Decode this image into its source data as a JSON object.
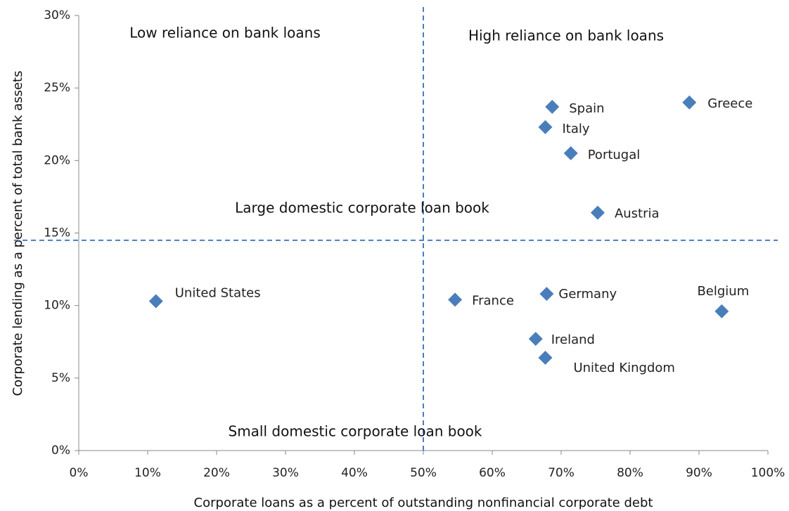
{
  "chart_data": {
    "type": "scatter",
    "x_label": "Corporate loans as a percent of outstanding nonfinancial corporate debt",
    "y_label": "Corporate lending as a percent of total bank assets",
    "annotations": [
      "Low reliance on bank loans",
      "High reliance on bank loans",
      "Large domestic  corporate loan book",
      "Small domestic  corporate loan book"
    ],
    "labels": [
      "United States",
      "France",
      "Germany",
      "Belgium",
      "Ireland",
      "United Kingdom",
      "Spain",
      "Italy",
      "Portugal",
      "Austria",
      "Greece"
    ],
    "x": [
      11.2,
      54.6,
      67.9,
      93.3,
      66.3,
      67.7,
      68.7,
      67.7,
      71.4,
      75.3,
      88.6
    ],
    "values": [
      10.3,
      10.4,
      10.8,
      9.6,
      7.7,
      6.4,
      23.7,
      22.3,
      20.5,
      16.4,
      24.0
    ],
    "color": "#4a7ebb",
    "ref_x": 50,
    "ref_y": 14.5,
    "xlim": [
      0,
      100
    ],
    "xticks": [
      {
        "value": 0,
        "label": "0%"
      },
      {
        "value": 10,
        "label": "10%"
      },
      {
        "value": 20,
        "label": "20%"
      },
      {
        "value": 30,
        "label": "30%"
      },
      {
        "value": 40,
        "label": "40%"
      },
      {
        "value": 50,
        "label": "50%"
      },
      {
        "value": 60,
        "label": "60%"
      },
      {
        "value": 70,
        "label": "70%"
      },
      {
        "value": 80,
        "label": "80%"
      },
      {
        "value": 90,
        "label": "90%"
      },
      {
        "value": 100,
        "label": "100%"
      }
    ],
    "ylim": [
      0,
      30
    ],
    "yticks": [
      {
        "value": 0,
        "label": "0%"
      },
      {
        "value": 5,
        "label": "5%"
      },
      {
        "value": 10,
        "label": "10%"
      },
      {
        "value": 15,
        "label": "15%"
      },
      {
        "value": 20,
        "label": "20%"
      },
      {
        "value": 25,
        "label": "25%"
      },
      {
        "value": 30,
        "label": "30%"
      }
    ],
    "grid": false
  }
}
